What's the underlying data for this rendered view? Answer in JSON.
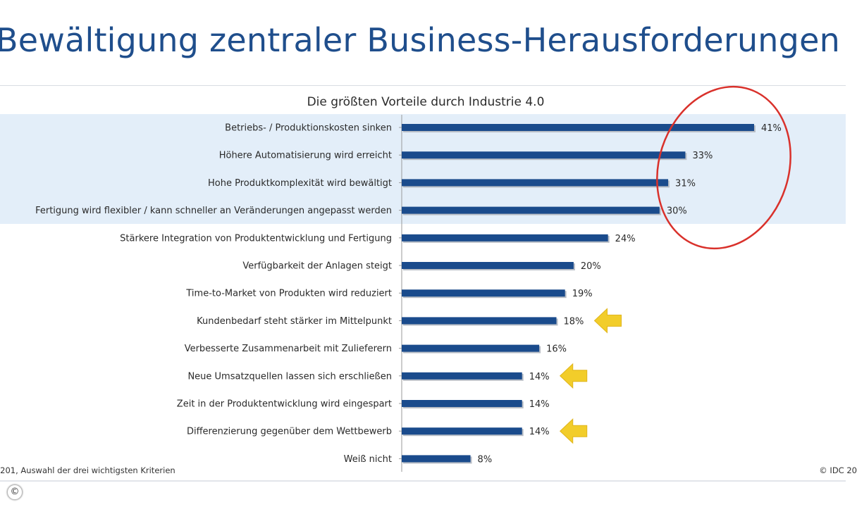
{
  "slide": {
    "title": "Bewältigung zentraler Business-Herausforderungen",
    "footnote": "-201, Auswahl der drei wichtigsten Kriterien",
    "copyright": "© IDC 20",
    "copy_symbol": "©"
  },
  "chart_data": {
    "type": "bar",
    "orientation": "horizontal",
    "title": "Die größten Vorteile durch Industrie 4.0",
    "categories": [
      "Betriebs- / Produktionskosten sinken",
      "Höhere Automatisierung wird erreicht",
      "Hohe Produktkomplexität wird bewältigt",
      "Fertigung wird flexibler / kann schneller an Veränderungen angepasst werden",
      "Stärkere Integration von Produktentwicklung und Fertigung",
      "Verfügbarkeit der Anlagen steigt",
      "Time-to-Market von Produkten wird reduziert",
      "Kundenbedarf steht stärker im Mittelpunkt",
      "Verbesserte Zusammenarbeit mit Zulieferern",
      "Neue Umsatzquellen lassen sich erschließen",
      "Zeit in der Produktentwicklung wird eingespart",
      "Differenzierung gegenüber dem Wettbewerb",
      "Weiß nicht"
    ],
    "values": [
      41,
      33,
      31,
      30,
      24,
      20,
      19,
      18,
      16,
      14,
      14,
      14,
      8
    ],
    "value_labels": [
      "41%",
      "33%",
      "31%",
      "30%",
      "24%",
      "20%",
      "19%",
      "18%",
      "16%",
      "14%",
      "14%",
      "14%",
      "8%"
    ],
    "xlim": [
      0,
      41
    ],
    "grid": false,
    "highlighted_rows": [
      0,
      1,
      2,
      3
    ],
    "arrow_rows": [
      7,
      9,
      11
    ],
    "colors": {
      "bar": "#1a4b8c",
      "band": "#e3eef9",
      "circle": "#d9312b",
      "arrow": "#f2cd2a"
    }
  }
}
